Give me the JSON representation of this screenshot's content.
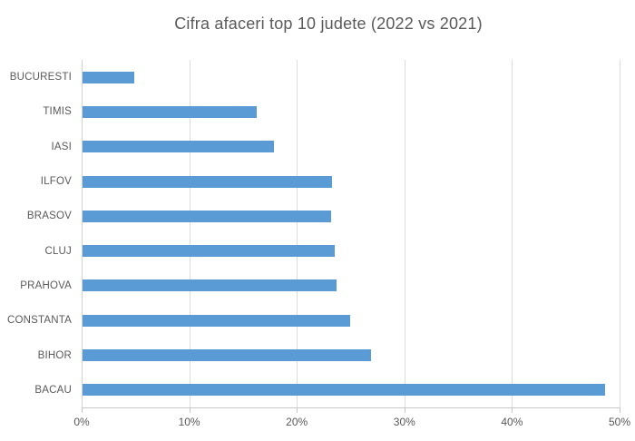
{
  "chart_data": {
    "type": "bar",
    "orientation": "horizontal",
    "title": "Cifra afaceri top 10 judete (2022 vs 2021)",
    "categories": [
      "BUCURESTI",
      "TIMIS",
      "IASI",
      "ILFOV",
      "BRASOV",
      "CLUJ",
      "PRAHOVA",
      "CONSTANTA",
      "BIHOR",
      "BACAU"
    ],
    "values": [
      4.8,
      16.2,
      17.8,
      23.2,
      23.1,
      23.4,
      23.6,
      24.9,
      26.8,
      48.6
    ],
    "value_unit": "%",
    "xlabel": "",
    "ylabel": "",
    "xlim": [
      0,
      50
    ],
    "x_tick_values": [
      0,
      10,
      20,
      30,
      40,
      50
    ],
    "x_tick_labels": [
      "0%",
      "10%",
      "20%",
      "30%",
      "40%",
      "50%"
    ],
    "grid": true,
    "legend": false,
    "colors": {
      "bar": "#5B9BD5",
      "title_text": "#595959",
      "axis_text": "#595959",
      "gridline": "#DCDCDC",
      "axis_line": "#C6C6C6",
      "background": "#FFFFFF"
    }
  }
}
